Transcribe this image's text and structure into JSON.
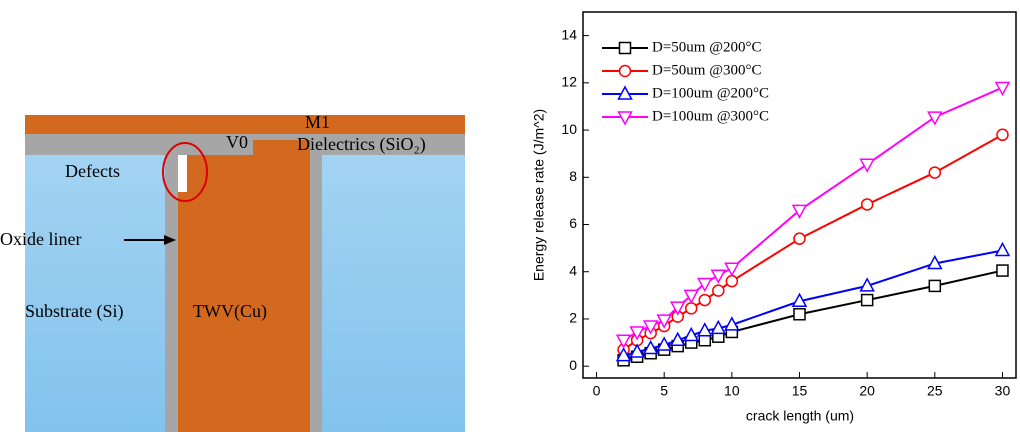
{
  "diagram": {
    "labels": {
      "m1": "M1",
      "v0": "V0",
      "dielectrics": "Dielectrics (SiO₂)",
      "defects": "Defects",
      "oxide_liner": "Oxide liner",
      "substrate": "Substrate (Si)",
      "twv": "TWV(Cu)"
    }
  },
  "chart_data": {
    "type": "line",
    "x_label": "crack length (um)",
    "y_label": "Energy release rate (J/m^2)",
    "x": [
      2,
      3,
      4,
      5,
      6,
      7,
      8,
      9,
      10,
      15,
      20,
      25,
      30
    ],
    "series": [
      {
        "name": "D=50um @200°C",
        "color": "#000000",
        "marker": "square",
        "values": [
          0.25,
          0.4,
          0.55,
          0.7,
          0.85,
          1.0,
          1.1,
          1.25,
          1.45,
          2.2,
          2.8,
          3.4,
          4.05
        ]
      },
      {
        "name": "D=50um @300°C",
        "color": "#ff0000",
        "marker": "circle",
        "values": [
          0.7,
          1.1,
          1.4,
          1.7,
          2.1,
          2.45,
          2.8,
          3.2,
          3.6,
          5.4,
          6.85,
          8.2,
          9.8
        ]
      },
      {
        "name": "D=100um @200°C",
        "color": "#0000ff",
        "marker": "triangle-up",
        "values": [
          0.45,
          0.6,
          0.75,
          0.9,
          1.1,
          1.3,
          1.5,
          1.6,
          1.75,
          2.75,
          3.4,
          4.35,
          4.9
        ]
      },
      {
        "name": "D=100um @300°C",
        "color": "#ff00ff",
        "marker": "triangle-down",
        "values": [
          1.1,
          1.45,
          1.7,
          1.95,
          2.5,
          3.0,
          3.5,
          3.85,
          4.15,
          6.6,
          8.55,
          10.55,
          11.8
        ]
      }
    ],
    "xlim": [
      -1,
      31
    ],
    "ylim": [
      -0.5,
      15
    ],
    "xticks": [
      0,
      5,
      10,
      15,
      20,
      25,
      30
    ],
    "yticks": [
      0,
      2,
      4,
      6,
      8,
      10,
      12,
      14
    ],
    "grid": false,
    "legend": "top-left"
  }
}
